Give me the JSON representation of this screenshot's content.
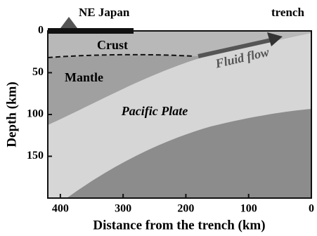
{
  "chart_data": {
    "type": "section",
    "xlabel": "Distance from the trench (km)",
    "ylabel": "Depth (km)",
    "xlim": [
      420,
      0
    ],
    "ylim": [
      0,
      200
    ],
    "xticks": [
      400,
      300,
      200,
      100,
      0
    ],
    "yticks": [
      0,
      50,
      100,
      150
    ],
    "labels": {
      "japan": "NE Japan",
      "trench": "trench",
      "crust": "Crust",
      "mantle": "Mantle",
      "fluid": "Fluid flow",
      "plate": "Pacific Plate"
    }
  }
}
